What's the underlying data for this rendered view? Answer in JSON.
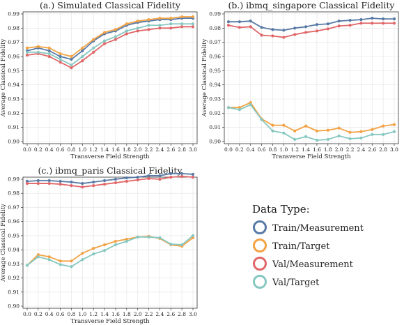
{
  "colors": {
    "Train/Measurement": "#5779a6",
    "Train/Target": "#f2a244",
    "Val/Measurement": "#e06668",
    "Val/Target": "#86c8c1"
  },
  "legend": {
    "title": "Data Type:",
    "entries": [
      "Train/Measurement",
      "Train/Target",
      "Val/Measurement",
      "Val/Target"
    ]
  },
  "chart_data": [
    {
      "type": "line",
      "title": "(a.) Simulated Classical Fidelity",
      "xlabel": "Transverse Field Strength",
      "ylabel": "Average Classical Fidelity",
      "ylim": [
        0.9,
        0.99
      ],
      "x": [
        0.0,
        0.2,
        0.4,
        0.6,
        0.8,
        1.0,
        1.2,
        1.4,
        1.6,
        1.8,
        2.0,
        2.2,
        2.4,
        2.6,
        2.8,
        3.0
      ],
      "xticks": [
        "0.0",
        "0.2",
        "0.4",
        "0.6",
        "0.8",
        "1.0",
        "1.2",
        "1.4",
        "1.6",
        "1.8",
        "2.0",
        "2.2",
        "2.4",
        "2.6",
        "2.8",
        "3.0"
      ],
      "yticks": [
        "0.90",
        "0.91",
        "0.92",
        "0.93",
        "0.94",
        "0.95",
        "0.96",
        "0.97",
        "0.98",
        "0.99"
      ],
      "grid": true,
      "series": [
        {
          "name": "Train/Measurement",
          "values": [
            0.964,
            0.966,
            0.964,
            0.96,
            0.958,
            0.964,
            0.971,
            0.976,
            0.978,
            0.982,
            0.984,
            0.985,
            0.986,
            0.986,
            0.987,
            0.987
          ]
        },
        {
          "name": "Train/Target",
          "values": [
            0.966,
            0.967,
            0.966,
            0.962,
            0.96,
            0.966,
            0.972,
            0.977,
            0.979,
            0.983,
            0.985,
            0.986,
            0.987,
            0.987,
            0.988,
            0.988
          ]
        },
        {
          "name": "Val/Measurement",
          "values": [
            0.961,
            0.962,
            0.96,
            0.956,
            0.952,
            0.957,
            0.963,
            0.969,
            0.972,
            0.976,
            0.978,
            0.979,
            0.98,
            0.98,
            0.981,
            0.981
          ]
        },
        {
          "name": "Val/Target",
          "values": [
            0.963,
            0.963,
            0.962,
            0.958,
            0.954,
            0.96,
            0.966,
            0.971,
            0.974,
            0.978,
            0.98,
            0.982,
            0.982,
            0.983,
            0.983,
            0.983
          ]
        }
      ]
    },
    {
      "type": "line",
      "title": "(b.) ibmq_singapore Classical Fidelity",
      "xlabel": "Transverse Field Strength",
      "ylabel": "Average Classical Fidelity",
      "ylim": [
        0.9,
        0.99
      ],
      "x": [
        0.0,
        0.2,
        0.4,
        0.6,
        0.8,
        1.0,
        1.2,
        1.4,
        1.6,
        1.8,
        2.0,
        2.2,
        2.4,
        2.6,
        2.8,
        3.0
      ],
      "xticks": [
        "0.0",
        "0.2",
        "0.4",
        "0.6",
        "0.8",
        "1.0",
        "1.2",
        "1.4",
        "1.6",
        "1.8",
        "2.0",
        "2.2",
        "2.4",
        "2.6",
        "2.8",
        "3.0"
      ],
      "yticks": [
        "0.90",
        "0.91",
        "0.92",
        "0.93",
        "0.94",
        "0.95",
        "0.96",
        "0.97",
        "0.98",
        "0.99"
      ],
      "grid": true,
      "series": [
        {
          "name": "Train/Measurement",
          "values": [
            0.9845,
            0.9845,
            0.985,
            0.9805,
            0.979,
            0.9785,
            0.98,
            0.981,
            0.9825,
            0.983,
            0.985,
            0.9855,
            0.986,
            0.987,
            0.9865,
            0.9865
          ]
        },
        {
          "name": "Train/Target",
          "values": [
            0.924,
            0.924,
            0.9275,
            0.916,
            0.9115,
            0.9115,
            0.9075,
            0.911,
            0.9075,
            0.908,
            0.9095,
            0.9065,
            0.907,
            0.9085,
            0.911,
            0.912
          ]
        },
        {
          "name": "Val/Measurement",
          "values": [
            0.982,
            0.9805,
            0.981,
            0.975,
            0.9745,
            0.9735,
            0.9755,
            0.977,
            0.978,
            0.9795,
            0.9815,
            0.982,
            0.9835,
            0.9835,
            0.9835,
            0.9835
          ]
        },
        {
          "name": "Val/Target",
          "values": [
            0.924,
            0.9225,
            0.926,
            0.9155,
            0.9075,
            0.906,
            0.9015,
            0.9035,
            0.901,
            0.9015,
            0.904,
            0.902,
            0.9025,
            0.905,
            0.905,
            0.907
          ]
        }
      ]
    },
    {
      "type": "line",
      "title": "(c.) ibmq_paris Classical Fidelity",
      "xlabel": "Transverse Field Strength",
      "ylabel": "Average Classical Fidelity",
      "ylim": [
        0.9,
        0.99
      ],
      "x": [
        0.0,
        0.2,
        0.4,
        0.6,
        0.8,
        1.0,
        1.2,
        1.4,
        1.6,
        1.8,
        2.0,
        2.2,
        2.4,
        2.6,
        2.8,
        3.0
      ],
      "xticks": [
        "0.0",
        "0.2",
        "0.4",
        "0.6",
        "0.8",
        "1.0",
        "1.2",
        "1.4",
        "1.6",
        "1.8",
        "2.0",
        "2.2",
        "2.4",
        "2.6",
        "2.8",
        "3.0"
      ],
      "yticks": [
        "0.90",
        "0.91",
        "0.92",
        "0.93",
        "0.94",
        "0.95",
        "0.96",
        "0.97",
        "0.98",
        "0.99"
      ],
      "grid": true,
      "series": [
        {
          "name": "Train/Measurement",
          "values": [
            0.9885,
            0.989,
            0.989,
            0.9885,
            0.988,
            0.987,
            0.988,
            0.989,
            0.99,
            0.991,
            0.9915,
            0.9925,
            0.9925,
            0.994,
            0.994,
            0.9935
          ]
        },
        {
          "name": "Train/Target",
          "values": [
            0.929,
            0.9365,
            0.935,
            0.932,
            0.932,
            0.9375,
            0.941,
            0.9435,
            0.946,
            0.9475,
            0.949,
            0.9495,
            0.948,
            0.9435,
            0.9425,
            0.9485
          ]
        },
        {
          "name": "Val/Measurement",
          "values": [
            0.987,
            0.987,
            0.987,
            0.9865,
            0.9855,
            0.9845,
            0.9855,
            0.9865,
            0.9875,
            0.9885,
            0.9895,
            0.9905,
            0.99,
            0.9915,
            0.992,
            0.9915
          ]
        },
        {
          "name": "Val/Target",
          "values": [
            0.929,
            0.935,
            0.933,
            0.9295,
            0.928,
            0.933,
            0.937,
            0.9395,
            0.9435,
            0.946,
            0.949,
            0.949,
            0.9485,
            0.944,
            0.9435,
            0.95
          ]
        }
      ]
    }
  ]
}
